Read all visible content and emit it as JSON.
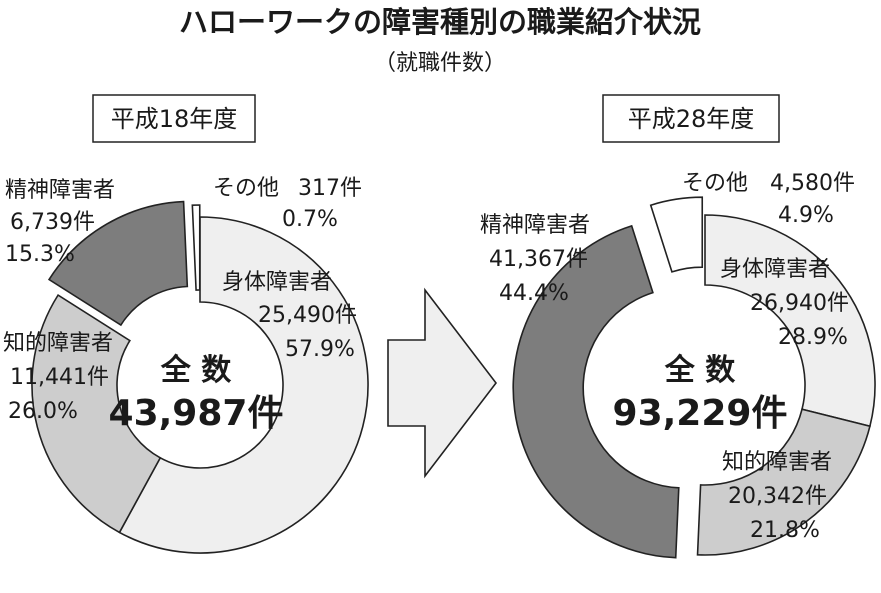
{
  "title": "ハローワークの障害種別の職業紹介状況",
  "subtitle": "（就職件数）",
  "colors": {
    "physical": "#efefef",
    "intellectual": "#cdcdcd",
    "mental": "#7d7d7d",
    "other": "#ffffff",
    "arrow": "#efefef"
  },
  "chart_data": [
    {
      "type": "pie",
      "year_label": "平成18年度",
      "total_label": "全 数",
      "total_value": "43,987件",
      "slices": [
        {
          "key": "physical",
          "name": "身体障害者",
          "count": "25,490件",
          "percent": "57.9%",
          "value": 57.9
        },
        {
          "key": "intellectual",
          "name": "知的障害者",
          "count": "11,441件",
          "percent": "26.0%",
          "value": 26.0
        },
        {
          "key": "mental",
          "name": "精神障害者",
          "count": "6,739件",
          "percent": "15.3%",
          "value": 15.3
        },
        {
          "key": "other",
          "name": "その他",
          "count": "317件",
          "percent": "0.7%",
          "value": 0.7
        }
      ]
    },
    {
      "type": "pie",
      "year_label": "平成28年度",
      "total_label": "全 数",
      "total_value": "93,229件",
      "slices": [
        {
          "key": "physical",
          "name": "身体障害者",
          "count": "26,940件",
          "percent": "28.9%",
          "value": 28.9
        },
        {
          "key": "intellectual",
          "name": "知的障害者",
          "count": "20,342件",
          "percent": "21.8%",
          "value": 21.8
        },
        {
          "key": "mental",
          "name": "精神障害者",
          "count": "41,367件",
          "percent": "44.4%",
          "value": 44.4
        },
        {
          "key": "other",
          "name": "その他",
          "count": "4,580件",
          "percent": "4.9%",
          "value": 4.9
        }
      ]
    }
  ]
}
